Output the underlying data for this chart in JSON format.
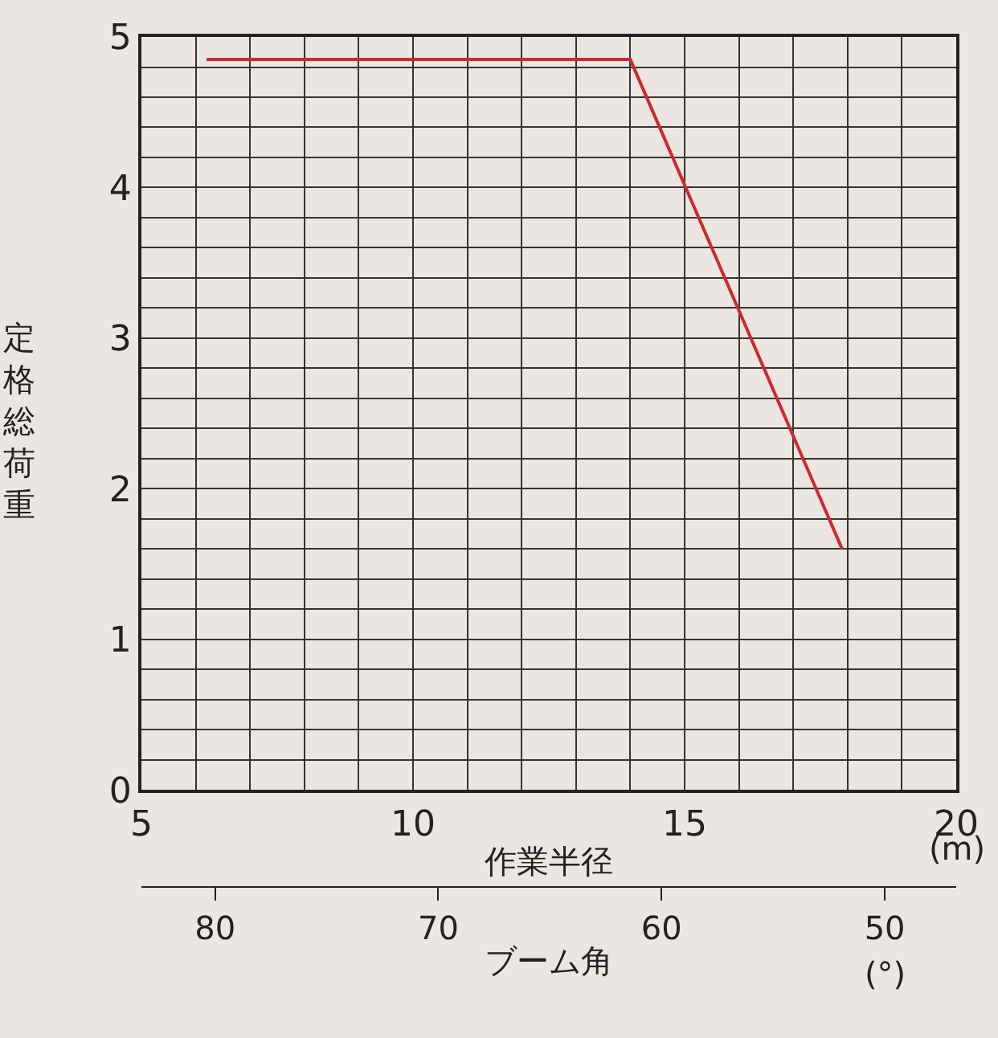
{
  "chart_data": {
    "type": "line",
    "xlabel": "作業半径",
    "ylabel": "定格総荷重",
    "x2label": "ブーム角",
    "x": [
      6.2,
      14,
      17.9
    ],
    "series": [
      {
        "color": "#cc2a2e",
        "values": [
          4.85,
          4.85,
          1.6
        ]
      }
    ],
    "xlim": [
      5,
      20
    ],
    "xticks": [
      5,
      {
        "value": 6,
        "label": null
      },
      {
        "value": 7,
        "label": null
      },
      {
        "value": 8,
        "label": null
      },
      {
        "value": 9,
        "label": null
      },
      10,
      {
        "value": 11,
        "label": null
      },
      {
        "value": 12,
        "label": null
      },
      {
        "value": 13,
        "label": null
      },
      {
        "value": 14,
        "label": null
      },
      15,
      {
        "value": 16,
        "label": null
      },
      {
        "value": 17,
        "label": null
      },
      {
        "value": 18,
        "label": null
      },
      {
        "value": 19,
        "label": null
      },
      20
    ],
    "ylim": [
      0,
      5
    ],
    "yticks": [
      0,
      {
        "value": 0.2,
        "label": null
      },
      {
        "value": 0.4,
        "label": null
      },
      {
        "value": 0.6,
        "label": null
      },
      {
        "value": 0.8,
        "label": null
      },
      1,
      {
        "value": 1.2,
        "label": null
      },
      {
        "value": 1.4,
        "label": null
      },
      {
        "value": 1.6,
        "label": null
      },
      {
        "value": 1.8,
        "label": null
      },
      2,
      {
        "value": 2.2,
        "label": null
      },
      {
        "value": 2.4,
        "label": null
      },
      {
        "value": 2.6,
        "label": null
      },
      {
        "value": 2.8,
        "label": null
      },
      3,
      {
        "value": 3.2,
        "label": null
      },
      {
        "value": 3.4,
        "label": null
      },
      {
        "value": 3.6,
        "label": null
      },
      {
        "value": 3.8,
        "label": null
      },
      4,
      {
        "value": 4.2,
        "label": null
      },
      {
        "value": 4.4,
        "label": null
      },
      {
        "value": 4.6,
        "label": null
      },
      {
        "value": 4.8,
        "label": null
      },
      5
    ],
    "x2lim": [
      83.3,
      46.8
    ],
    "x2ticks": [
      80,
      70,
      60,
      50
    ],
    "annotations": [
      "(m)",
      "(°)"
    ],
    "grid": true,
    "marker": "none",
    "line_style": "solid"
  }
}
